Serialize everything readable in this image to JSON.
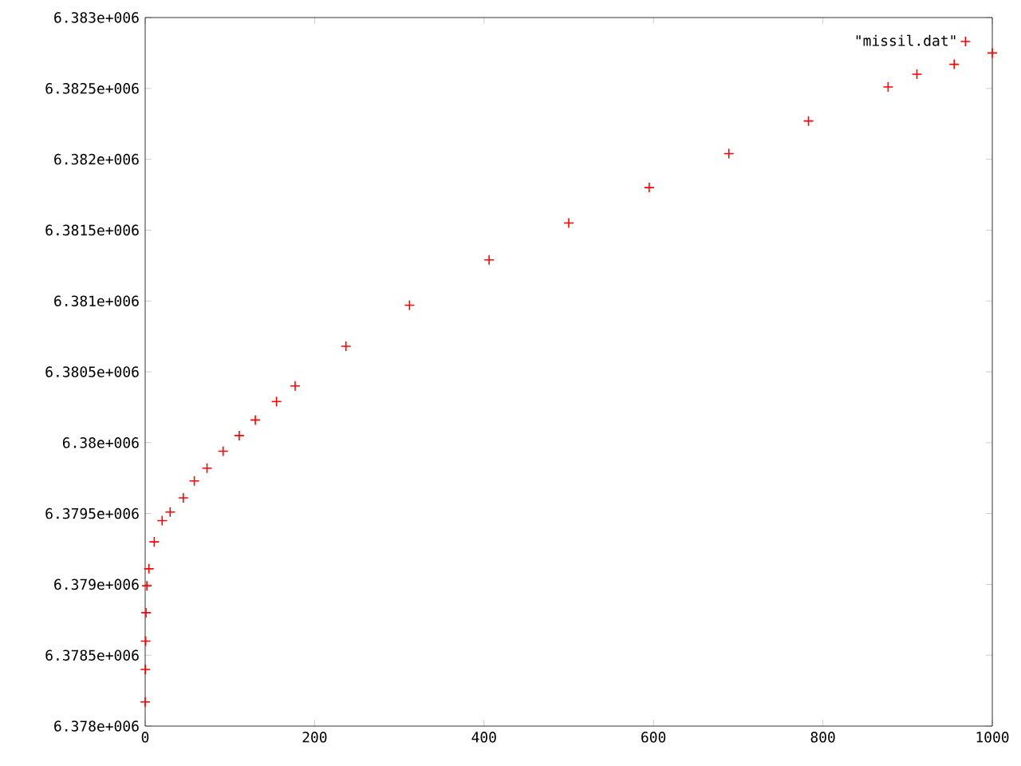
{
  "chart_data": {
    "type": "scatter",
    "x": [
      0,
      0.2,
      0.5,
      1,
      2,
      4.4,
      10.7,
      20,
      29.5,
      45,
      58,
      73,
      92,
      111,
      130,
      155,
      177,
      237,
      312,
      406,
      500,
      595,
      689,
      783,
      877,
      911,
      955,
      1000
    ],
    "series": [
      {
        "name": "\"missil.dat\"",
        "color": "#ff0000",
        "values": [
          6378170,
          6378400,
          6378600,
          6378800,
          6378990,
          6379110,
          6379300,
          6379450,
          6379510,
          6379610,
          6379730,
          6379820,
          6379940,
          6380050,
          6380160,
          6380290,
          6380400,
          6380680,
          6380970,
          6381290,
          6381550,
          6381800,
          6382040,
          6382270,
          6382510,
          6382600,
          6382670,
          6382750
        ]
      }
    ],
    "xlim": [
      0,
      1000
    ],
    "xticks": [
      0,
      200,
      400,
      600,
      800,
      1000
    ],
    "ylim": [
      6378000,
      6383000
    ],
    "yticks": [
      {
        "value": 6378000,
        "label": "6.378e+006"
      },
      {
        "value": 6378500,
        "label": "6.3785e+006"
      },
      {
        "value": 6379000,
        "label": "6.379e+006"
      },
      {
        "value": 6379500,
        "label": "6.3795e+006"
      },
      {
        "value": 6380000,
        "label": "6.38e+006"
      },
      {
        "value": 6380500,
        "label": "6.3805e+006"
      },
      {
        "value": 6381000,
        "label": "6.381e+006"
      },
      {
        "value": 6381500,
        "label": "6.3815e+006"
      },
      {
        "value": 6382000,
        "label": "6.382e+006"
      },
      {
        "value": 6382500,
        "label": "6.3825e+006"
      },
      {
        "value": 6383000,
        "label": "6.383e+006"
      }
    ],
    "legend": "top right",
    "marker": "cross",
    "grid": false
  }
}
